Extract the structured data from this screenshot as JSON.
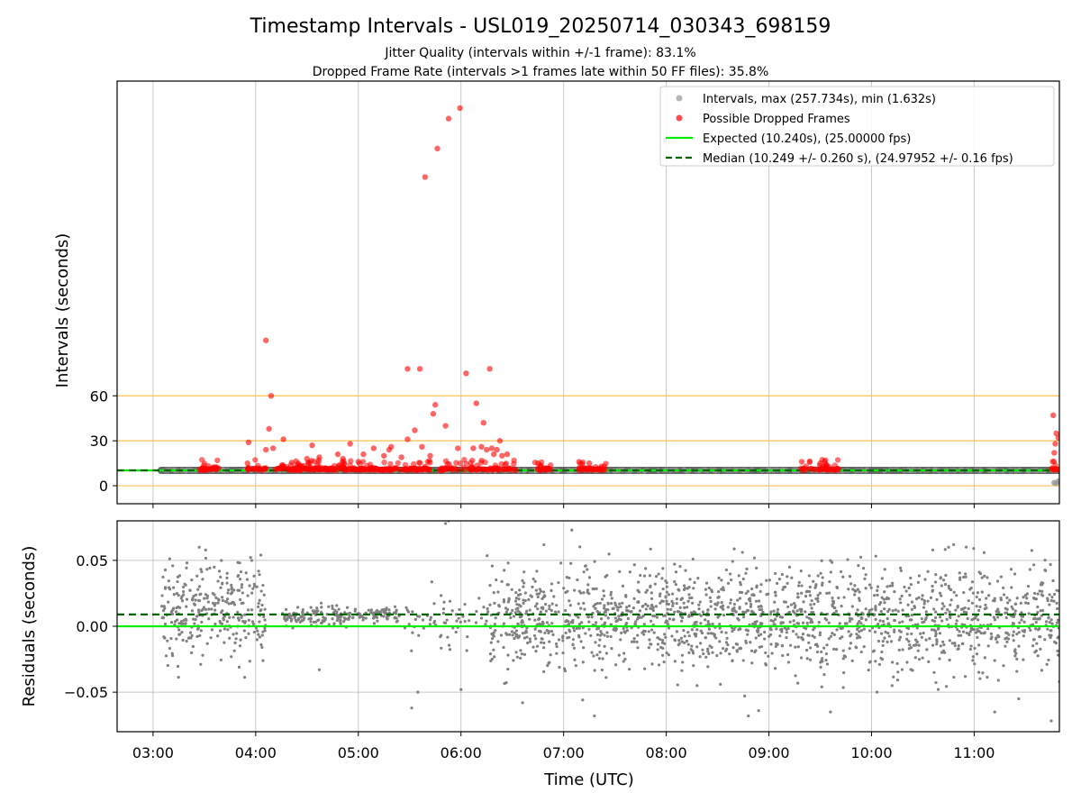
{
  "title": "Timestamp Intervals - USL019_20250714_030343_698159",
  "subtitle_1": "Jitter Quality (intervals within +/-1 frame): 83.1%",
  "subtitle_2": "Dropped Frame Rate (intervals >1 frames late within 50 FF files): 35.8%",
  "colors": {
    "intervals": "#999999",
    "dropped": "#ff0000",
    "expected": "#00ee00",
    "median": "#006400",
    "guides": "#ffc04d",
    "grid": "#b0b0b0",
    "residual_points": "#808080"
  },
  "chart_data": [
    {
      "type": "scatter",
      "ylabel": "Intervals (seconds)",
      "xlim": [
        2.65,
        11.83
      ],
      "ylim": [
        -12,
        270
      ],
      "x_ticks": [
        3,
        4,
        5,
        6,
        7,
        8,
        9,
        10,
        11
      ],
      "y_ticks": [
        0,
        30,
        60
      ],
      "y_tick_labels": [
        "0",
        "30",
        "60"
      ],
      "grid": "x",
      "horizontal_guides": [
        0,
        30,
        60
      ],
      "legend": {
        "placement": "top-right",
        "entries": [
          {
            "label": "Intervals, max (257.734s), min (1.632s)",
            "marker": "dot",
            "color": "#999999"
          },
          {
            "label": "Possible Dropped Frames",
            "marker": "dot",
            "color": "#ff0000"
          },
          {
            "label": "Expected (10.240s), (25.00000 fps)",
            "marker": "line",
            "color": "#00ee00"
          },
          {
            "label": "Median (10.249 +/- 0.260 s), (24.97952 +/- 0.16 fps)",
            "marker": "dashed",
            "color": "#006400"
          }
        ]
      },
      "expected_y": 10.24,
      "median_y": 10.249,
      "interval_band": {
        "x_start": 3.08,
        "x_end": 11.83,
        "y": 10.25
      },
      "interval_low_points": [
        [
          11.78,
          2
        ],
        [
          11.8,
          1.632
        ],
        [
          11.82,
          3
        ]
      ],
      "dropped_clusters": [
        {
          "x_start": 3.45,
          "x_end": 3.65,
          "n": 35
        },
        {
          "x_start": 3.92,
          "x_end": 4.1,
          "n": 25
        },
        {
          "x_start": 4.18,
          "x_end": 5.7,
          "n": 260
        },
        {
          "x_start": 5.75,
          "x_end": 6.55,
          "n": 90
        },
        {
          "x_start": 6.72,
          "x_end": 6.9,
          "n": 25
        },
        {
          "x_start": 7.15,
          "x_end": 7.42,
          "n": 40
        },
        {
          "x_start": 9.3,
          "x_end": 9.68,
          "n": 45
        },
        {
          "x_start": 11.75,
          "x_end": 11.83,
          "n": 12
        }
      ],
      "dropped_points": [
        [
          4.1,
          97
        ],
        [
          4.15,
          60
        ],
        [
          4.13,
          38
        ],
        [
          4.27,
          31
        ],
        [
          4.1,
          24
        ],
        [
          4.17,
          25
        ],
        [
          3.93,
          29
        ],
        [
          3.92,
          15
        ],
        [
          4.45,
          13
        ],
        [
          4.5,
          18
        ],
        [
          4.55,
          27
        ],
        [
          4.62,
          19
        ],
        [
          4.8,
          21
        ],
        [
          4.85,
          18
        ],
        [
          4.92,
          28
        ],
        [
          5.0,
          16
        ],
        [
          5.05,
          21
        ],
        [
          5.15,
          25
        ],
        [
          5.3,
          24
        ],
        [
          5.32,
          26
        ],
        [
          5.48,
          31
        ],
        [
          5.55,
          37
        ],
        [
          5.62,
          26
        ],
        [
          5.7,
          20
        ],
        [
          5.42,
          19
        ],
        [
          5.25,
          20
        ],
        [
          5.48,
          78
        ],
        [
          5.6,
          78
        ],
        [
          5.65,
          206
        ],
        [
          5.77,
          225
        ],
        [
          5.88,
          245
        ],
        [
          5.99,
          252
        ],
        [
          5.73,
          48
        ],
        [
          5.75,
          54
        ],
        [
          5.85,
          40
        ],
        [
          5.97,
          25
        ],
        [
          6.05,
          75
        ],
        [
          6.15,
          55
        ],
        [
          6.22,
          42
        ],
        [
          6.28,
          78
        ],
        [
          6.12,
          25
        ],
        [
          6.2,
          26
        ],
        [
          6.25,
          24
        ],
        [
          6.3,
          25
        ],
        [
          6.35,
          24
        ],
        [
          6.38,
          30
        ],
        [
          6.4,
          20
        ],
        [
          6.45,
          21
        ],
        [
          6.32,
          21
        ],
        [
          6.75,
          15
        ],
        [
          7.25,
          15
        ],
        [
          7.2,
          12
        ],
        [
          9.32,
          16
        ],
        [
          9.5,
          15
        ],
        [
          9.55,
          13
        ],
        [
          11.77,
          47
        ],
        [
          11.8,
          35
        ],
        [
          11.79,
          28
        ],
        [
          11.82,
          32
        ],
        [
          11.78,
          22
        ]
      ]
    },
    {
      "type": "scatter",
      "ylabel": "Residuals (seconds)",
      "xlabel": "Time (UTC)",
      "xlim": [
        2.65,
        11.83
      ],
      "ylim": [
        -0.08,
        0.08
      ],
      "x_ticks": [
        3,
        4,
        5,
        6,
        7,
        8,
        9,
        10,
        11
      ],
      "x_tick_labels": [
        "03:00",
        "04:00",
        "05:00",
        "06:00",
        "07:00",
        "08:00",
        "09:00",
        "10:00",
        "11:00"
      ],
      "y_ticks": [
        -0.05,
        0.0,
        0.05
      ],
      "y_tick_labels": [
        "−0.05",
        "0.00",
        "0.05"
      ],
      "grid": "both",
      "expected_y": 0.0,
      "median_y": 0.009,
      "residual_segments": [
        {
          "x_start": 3.08,
          "x_end": 4.1,
          "n": 300,
          "center": 0.01,
          "spread": 0.022
        },
        {
          "x_start": 4.25,
          "x_end": 4.95,
          "n": 130,
          "center": 0.008,
          "spread": 0.004
        },
        {
          "x_start": 4.95,
          "x_end": 5.4,
          "n": 70,
          "center": 0.009,
          "spread": 0.003
        },
        {
          "x_start": 5.45,
          "x_end": 6.25,
          "n": 60,
          "center": 0.004,
          "spread": 0.012
        },
        {
          "x_start": 6.25,
          "x_end": 11.83,
          "n": 1700,
          "center": 0.006,
          "spread": 0.022
        }
      ],
      "residual_outliers": [
        [
          3.45,
          0.06
        ],
        [
          4.05,
          0.054
        ],
        [
          4.62,
          -0.033
        ],
        [
          5.52,
          -0.062
        ],
        [
          5.58,
          -0.05
        ],
        [
          5.85,
          0.078
        ],
        [
          5.88,
          0.08
        ],
        [
          6.0,
          -0.048
        ],
        [
          6.6,
          -0.058
        ],
        [
          7.08,
          0.073
        ],
        [
          7.3,
          -0.068
        ],
        [
          8.3,
          -0.045
        ],
        [
          8.8,
          -0.068
        ],
        [
          8.9,
          -0.064
        ],
        [
          9.6,
          -0.065
        ],
        [
          10.2,
          -0.045
        ],
        [
          10.8,
          0.062
        ],
        [
          10.75,
          0.06
        ],
        [
          11.2,
          -0.065
        ],
        [
          11.83,
          -0.042
        ]
      ]
    }
  ]
}
